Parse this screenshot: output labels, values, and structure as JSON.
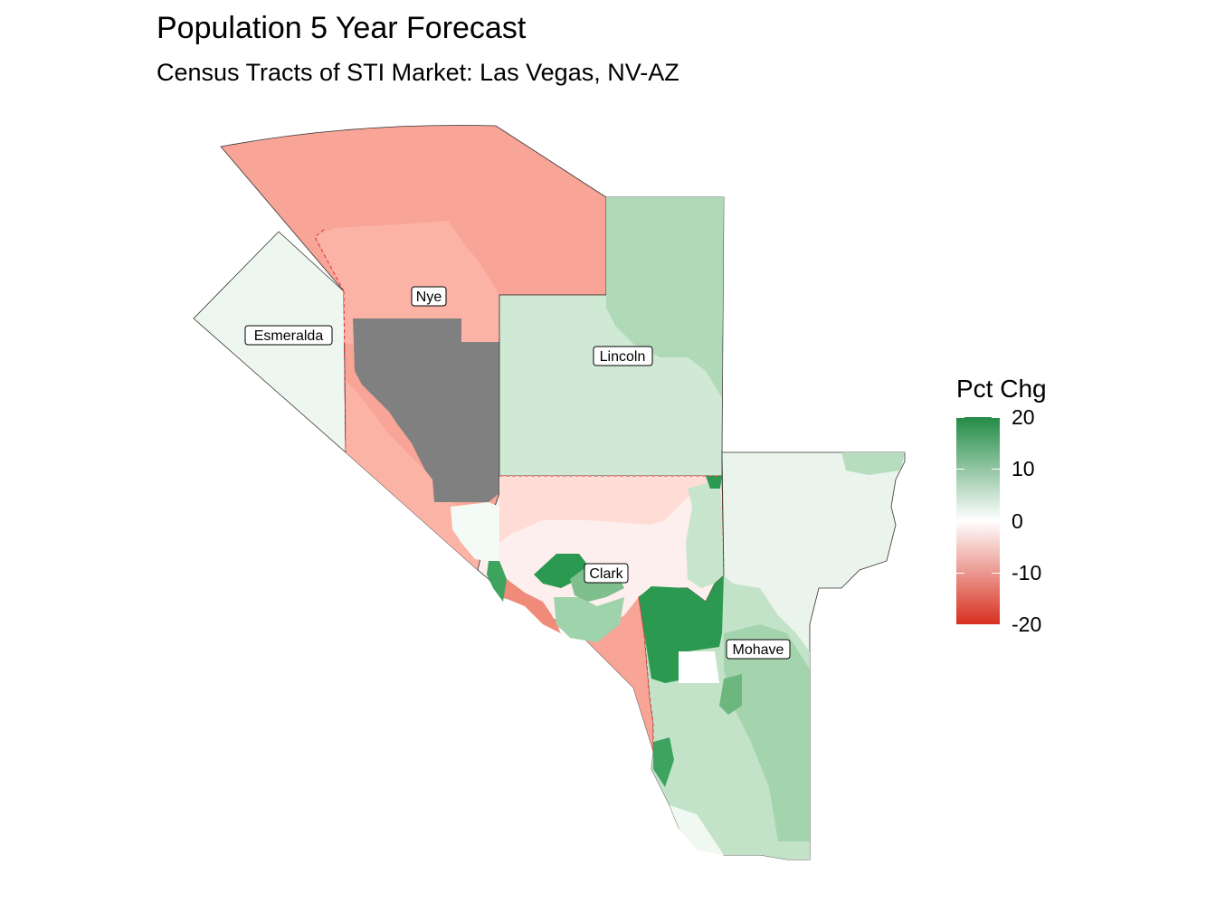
{
  "title": "Population 5 Year Forecast",
  "subtitle": "Census Tracts of STI Market: Las Vegas, NV-AZ",
  "legend": {
    "title": "Pct Chg",
    "ticks": [
      {
        "label": "20",
        "value": 20
      },
      {
        "label": "10",
        "value": 10
      },
      {
        "label": "0",
        "value": 0
      },
      {
        "label": "-10",
        "value": -10
      },
      {
        "label": "-20",
        "value": -20
      }
    ],
    "range": [
      -20,
      20
    ],
    "colors": {
      "low": "#d7301f",
      "mid": "#ffffff",
      "high": "#238b45",
      "missing": "#808080"
    }
  },
  "counties": [
    {
      "name": "Nye",
      "label": "Nye",
      "pct_chg": -11
    },
    {
      "name": "Esmeralda",
      "label": "Esmeralda",
      "pct_chg": 3
    },
    {
      "name": "Lincoln",
      "label": "Lincoln",
      "pct_chg": 7
    },
    {
      "name": "Clark",
      "label": "Clark",
      "pct_chg": -2
    },
    {
      "name": "Mohave",
      "label": "Mohave",
      "pct_chg": 8
    }
  ]
}
